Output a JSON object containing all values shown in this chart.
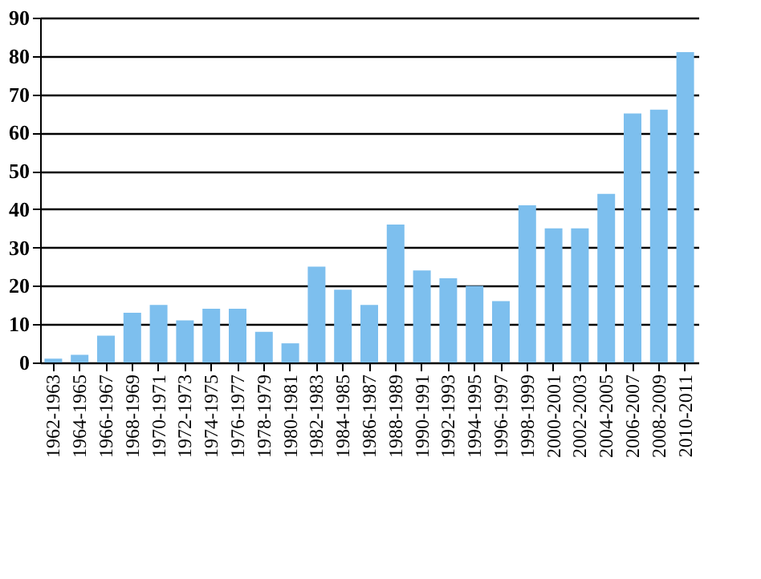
{
  "chart_data": {
    "type": "bar",
    "categories": [
      "1962-1963",
      "1964-1965",
      "1966-1967",
      "1968-1969",
      "1970-1971",
      "1972-1973",
      "1974-1975",
      "1976-1977",
      "1978-1979",
      "1980-1981",
      "1982-1983",
      "1984-1985",
      "1986-1987",
      "1988-1989",
      "1990-1991",
      "1992-1993",
      "1994-1995",
      "1996-1997",
      "1998-1999",
      "2000-2001",
      "2002-2003",
      "2004-2005",
      "2006-2007",
      "2008-2009",
      "2010-2011"
    ],
    "values": [
      1,
      2,
      7,
      13,
      15,
      11,
      14,
      14,
      8,
      5,
      25,
      19,
      15,
      36,
      24,
      22,
      20,
      16,
      41,
      35,
      35,
      44,
      65,
      66,
      81
    ],
    "color": "#7dbfee",
    "ylim": [
      0,
      90
    ],
    "yticks": [
      0,
      10,
      20,
      30,
      40,
      50,
      60,
      70,
      80,
      90
    ],
    "grid": "y"
  }
}
